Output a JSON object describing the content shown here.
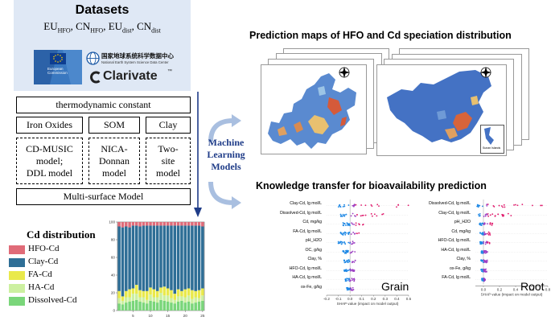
{
  "datasets": {
    "title": "Datasets",
    "line_parts": [
      {
        "base": "EU",
        "sub": "HFO"
      },
      {
        "sep": ", "
      },
      {
        "base": "CN",
        "sub": "HFO"
      },
      {
        "sep": ", "
      },
      {
        "base": "EU",
        "sub": "dist"
      },
      {
        "sep": ", "
      },
      {
        "base": "CN",
        "sub": "dist"
      }
    ],
    "logos": {
      "eu_caption_1": "European",
      "eu_caption_2": "Commission",
      "nesdc_cn": "国家地球系统科学数据中心",
      "nesdc_en": "National Earth System Science Data Center",
      "clarivate": "Clarivate",
      "tm": "™"
    }
  },
  "model_tree": {
    "top": "thermodynamic constant",
    "branches": [
      {
        "label": "Iron Oxides",
        "model_lines": [
          "CD-MUSIC",
          "model;",
          "DDL model"
        ]
      },
      {
        "label": "SOM",
        "model_lines": [
          "NICA-",
          "Donnan",
          "model"
        ]
      },
      {
        "label": "Clay",
        "model_lines": [
          "Two-",
          "site",
          "model"
        ]
      }
    ],
    "bottom": "Multi-surface Model"
  },
  "ml": {
    "lines": [
      "Machine",
      "Learning",
      "Models"
    ],
    "color": "#1f3c88"
  },
  "prediction": {
    "title": "Prediction maps of HFO and Cd speciation distribution",
    "inset_label": "Sunan Islands"
  },
  "knowledge": {
    "title": "Knowledge transfer for bioavailability prediction"
  },
  "cd_distribution": {
    "title": "Cd distribution",
    "legend": [
      {
        "label": "HFO-Cd",
        "color": "#e06b78"
      },
      {
        "label": "Clay-Cd",
        "color": "#2e6e96"
      },
      {
        "label": "FA-Cd",
        "color": "#e9e94b"
      },
      {
        "label": "HA-Cd",
        "color": "#ccf0a0"
      },
      {
        "label": "Dissolved-Cd",
        "color": "#7ad67a"
      }
    ]
  },
  "chart_data": [
    {
      "type": "bar",
      "stacked": true,
      "categories": [
        1,
        2,
        3,
        4,
        5,
        6,
        7,
        8,
        9,
        10,
        11,
        12,
        13,
        14,
        15,
        16,
        17,
        18,
        19,
        20,
        21,
        22,
        23,
        24,
        25
      ],
      "series": [
        {
          "name": "Dissolved-Cd",
          "values": [
            8,
            7,
            9,
            10,
            11,
            12,
            10,
            9,
            8,
            11,
            10,
            9,
            12,
            11,
            10,
            9,
            8,
            10,
            11,
            9,
            10,
            8,
            9,
            10,
            11
          ]
        },
        {
          "name": "HA-Cd",
          "values": [
            6,
            4,
            6,
            5,
            8,
            7,
            5,
            6,
            4,
            7,
            5,
            6,
            8,
            6,
            7,
            5,
            4,
            6,
            5,
            6,
            7,
            5,
            6,
            4,
            6
          ]
        },
        {
          "name": "FA-Cd",
          "values": [
            8,
            5,
            7,
            9,
            6,
            10,
            8,
            7,
            10,
            8,
            9,
            7,
            6,
            10,
            8,
            9,
            7,
            8,
            6,
            9,
            8,
            10,
            7,
            9,
            8
          ]
        },
        {
          "name": "Clay-Cd",
          "values": [
            73,
            78,
            73,
            70,
            71,
            67,
            72,
            74,
            74,
            70,
            72,
            74,
            70,
            69,
            71,
            73,
            77,
            72,
            74,
            72,
            71,
            73,
            74,
            73,
            70
          ]
        },
        {
          "name": "HFO-Cd",
          "values": [
            5,
            6,
            5,
            6,
            4,
            4,
            5,
            4,
            4,
            4,
            4,
            4,
            4,
            4,
            4,
            4,
            4,
            4,
            4,
            4,
            4,
            4,
            4,
            4,
            5
          ]
        }
      ],
      "ylim": [
        0,
        100
      ],
      "yticks": [
        "0",
        "20",
        "40",
        "60",
        "80",
        "100"
      ],
      "xticks": [
        "5",
        "10",
        "15",
        "20",
        "25"
      ]
    },
    {
      "type": "scatter",
      "label": "Grain",
      "features": [
        "Clay-Cd, lg mol/L",
        "Dissolved-Cd, lg mol/L",
        "Cd, mg/kg",
        "FA-Cd, lg mol/L",
        "pH_H2O",
        "OC, g/kg",
        "Clay, %",
        "HFO-Cd, lg mol/L",
        "HA-Cd, lg mol/L",
        "ox-Fe, g/kg"
      ],
      "xlabel": "SHAP value (impact on model output)",
      "xticks": [
        "-0.2",
        "-0.1",
        "0.0",
        "0.1",
        "0.2",
        "0.3",
        "0.4",
        "0.5"
      ],
      "xlim": [
        -0.2,
        0.5
      ]
    },
    {
      "type": "scatter",
      "label": "Root",
      "features": [
        "Dissolved-Cd, lg mol/L",
        "Clay-Cd, lg mol/L",
        "pH_H2O",
        "Cd, mg/kg",
        "HFO-Cd, lg mol/L",
        "HA-Cd, lg mol/L",
        "Clay, %",
        "ox-Fe, g/kg",
        "FA-Cd, lg mol/L"
      ],
      "xlabel": "SHAP value (impact on model output)",
      "xticks": [
        "0.0",
        "0.2",
        "0.4",
        "0.6",
        "0.8"
      ],
      "xlim": [
        -0.1,
        0.8
      ]
    }
  ]
}
